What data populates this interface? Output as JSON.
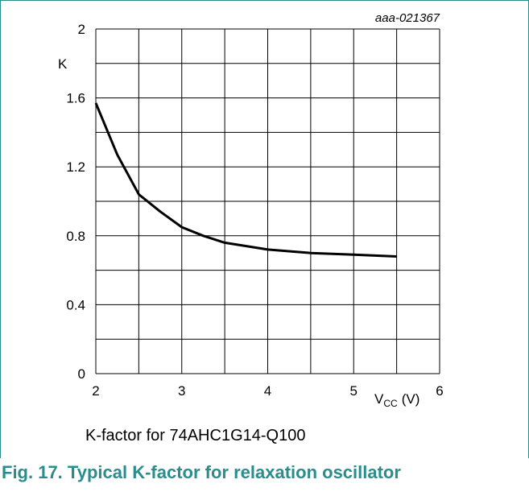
{
  "chart_data": {
    "type": "line",
    "id_label": "aaa-021367",
    "ylabel": "K",
    "xlabel_main": "V",
    "xlabel_sub": "CC",
    "xlabel_unit": "(V)",
    "xlim": [
      2,
      6
    ],
    "ylim": [
      0,
      2
    ],
    "x_ticks": [
      2,
      3,
      4,
      5,
      6
    ],
    "y_ticks": [
      0,
      0.4,
      0.8,
      1.2,
      1.6,
      2
    ],
    "y_tick_labels": [
      "0",
      "0.4",
      "0.8",
      "1.2",
      "1.6",
      "2"
    ],
    "grid": true,
    "series": [
      {
        "x": [
          2.0,
          2.25,
          2.5,
          2.75,
          3.0,
          3.25,
          3.5,
          4.0,
          4.5,
          5.0,
          5.5
        ],
        "values": [
          1.57,
          1.27,
          1.04,
          0.94,
          0.85,
          0.8,
          0.76,
          0.72,
          0.7,
          0.69,
          0.68
        ]
      }
    ],
    "subtitle": "K-factor for 74AHC1G14-Q100",
    "caption": "Fig. 17.  Typical K-factor for relaxation oscillator"
  },
  "colors": {
    "frame": "#2b8c8c",
    "caption": "#2b8c8c",
    "grid": "#000000",
    "line": "#000000"
  }
}
